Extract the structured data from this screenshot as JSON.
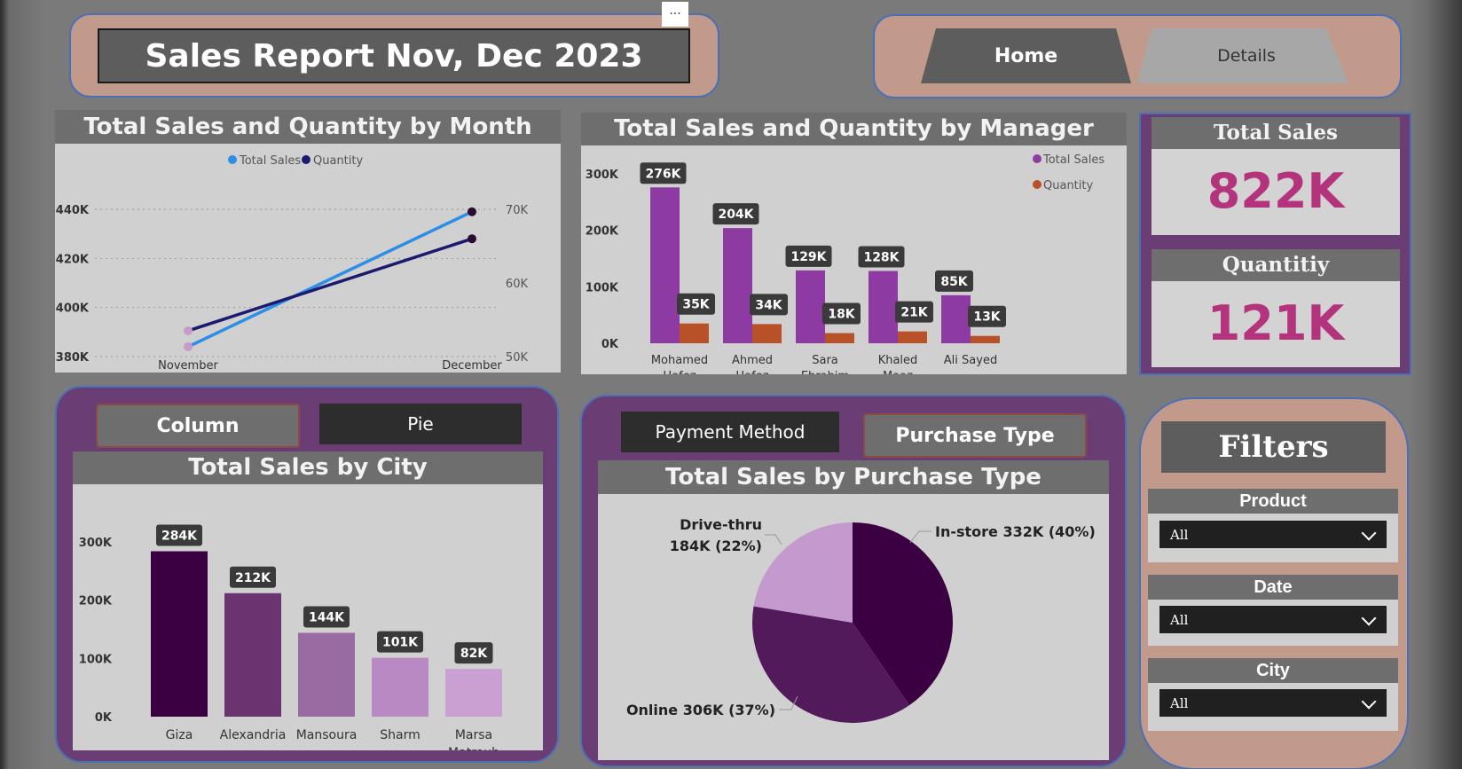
{
  "header": {
    "title": "Sales Report Nov, Dec 2023",
    "more_label": "···"
  },
  "nav": {
    "home_label": "Home",
    "details_label": "Details"
  },
  "kpis": {
    "total_sales_label": "Total Sales",
    "total_sales_value": "822K",
    "quantity_label": "Quantitiy",
    "quantity_value": "121K"
  },
  "toggles_city": {
    "column_label": "Column",
    "pie_label": "Pie"
  },
  "toggles_purchase": {
    "payment_label": "Payment Method",
    "purchase_label": "Purchase Type"
  },
  "filters": {
    "title": "Filters",
    "items": [
      {
        "label": "Product",
        "value": "All"
      },
      {
        "label": "Date",
        "value": "All"
      },
      {
        "label": "City",
        "value": "All"
      }
    ]
  },
  "colors": {
    "total_sales_line": "#2b8fe8",
    "quantity_line": "#1c1a6e",
    "manager_sales_bar": "#8e3aa3",
    "manager_qty_bar": "#b85128",
    "kpi_value": "#b4337d",
    "city_bars": [
      "#3b0041",
      "#6a3470",
      "#9a6aa3",
      "#b889c2",
      "#c9a0d1"
    ],
    "pie_slices": [
      "#3b0041",
      "#521a5a",
      "#c49ace"
    ]
  },
  "chart_data": [
    {
      "id": "month",
      "type": "line",
      "title": "Total Sales and Quantity by Month",
      "categories": [
        "November",
        "December"
      ],
      "series": [
        {
          "name": "Total Sales",
          "axis": "left",
          "values": [
            384,
            439
          ]
        },
        {
          "name": "Quantity",
          "axis": "right",
          "values": [
            53.5,
            66
          ]
        }
      ],
      "y_left_ticks": [
        "380K",
        "400K",
        "420K",
        "440K"
      ],
      "y_left_range": [
        380,
        440
      ],
      "y_right_ticks": [
        "50K",
        "60K",
        "70K"
      ],
      "y_right_range": [
        50,
        70
      ],
      "legend": "top-center",
      "grid": true
    },
    {
      "id": "manager",
      "type": "bar",
      "title": "Total Sales and Quantity by Manager",
      "categories": [
        [
          "Mohamed",
          "Hafez"
        ],
        [
          "Ahmed",
          "Hafez"
        ],
        [
          "Sara",
          "Ebrahim"
        ],
        [
          "Khaled",
          "Maaz"
        ],
        [
          "Ali Sayed"
        ]
      ],
      "series": [
        {
          "name": "Total Sales",
          "values": [
            276,
            204,
            129,
            128,
            85
          ],
          "labels": [
            "276K",
            "204K",
            "129K",
            "128K",
            "85K"
          ]
        },
        {
          "name": "Quantity",
          "values": [
            35,
            34,
            18,
            21,
            13
          ],
          "labels": [
            "35K",
            "34K",
            "18K",
            "21K",
            "13K"
          ]
        }
      ],
      "y_ticks": [
        "0K",
        "100K",
        "200K",
        "300K"
      ],
      "ylim": [
        0,
        300
      ],
      "legend": "top-right"
    },
    {
      "id": "city",
      "type": "bar",
      "title": "Total Sales by City",
      "categories": [
        [
          "Giza"
        ],
        [
          "Alexandria"
        ],
        [
          "Mansoura"
        ],
        [
          "Sharm"
        ],
        [
          "Marsa",
          "Matrouh"
        ]
      ],
      "values": [
        284,
        212,
        144,
        101,
        82
      ],
      "labels": [
        "284K",
        "212K",
        "144K",
        "101K",
        "82K"
      ],
      "y_ticks": [
        "0K",
        "100K",
        "200K",
        "300K"
      ],
      "ylim": [
        0,
        300
      ]
    },
    {
      "id": "purchase",
      "type": "pie",
      "title": "Total Sales by Purchase Type",
      "slices": [
        {
          "name": "In-store",
          "value": 332,
          "label": "In-store 332K (40%)"
        },
        {
          "name": "Online",
          "value": 306,
          "label": "Online 306K (37%)"
        },
        {
          "name": "Drive-thru",
          "value": 184,
          "label_lines": [
            "Drive-thru",
            "184K (22%)"
          ]
        }
      ]
    }
  ]
}
